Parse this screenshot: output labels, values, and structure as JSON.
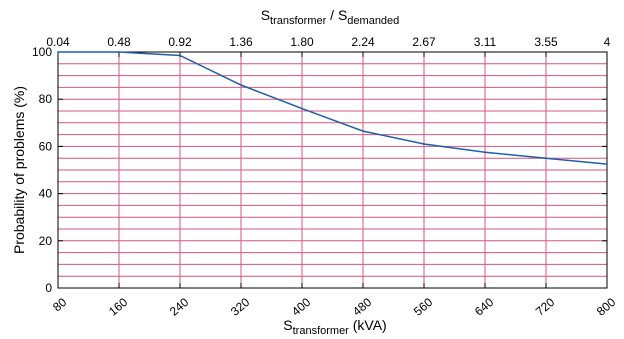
{
  "chart_data": {
    "type": "line",
    "x": [
      80,
      160,
      240,
      320,
      400,
      480,
      560,
      640,
      720,
      800
    ],
    "series": [
      {
        "values": [
          100,
          100,
          98.5,
          86,
          76,
          66.5,
          61,
          57.5,
          55,
          52.5
        ]
      }
    ],
    "xlim": [
      80,
      800
    ],
    "ylim": [
      0,
      100
    ],
    "x_ticks": [
      "80",
      "160",
      "240",
      "320",
      "400",
      "480",
      "560",
      "640",
      "720",
      "800"
    ],
    "y_ticks": [
      "0",
      "20",
      "40",
      "60",
      "80",
      "100"
    ],
    "top_ticks": [
      "0.04",
      "0.48",
      "0.92",
      "1.36",
      "1.80",
      "2.24",
      "2.67",
      "3.11",
      "3.55",
      "4"
    ],
    "xlabel": {
      "main": "S",
      "sub": "transformer",
      "unit": " (kVA)"
    },
    "ylabel": "Probability of problems (%)",
    "top_label": {
      "s1": "S",
      "sub1": "transformer",
      "sep": " / S",
      "sub2": "demanded"
    },
    "grid": true,
    "colors": {
      "line": "#1f5fa8",
      "grid": "#d7577f",
      "axis": "#000000"
    }
  }
}
